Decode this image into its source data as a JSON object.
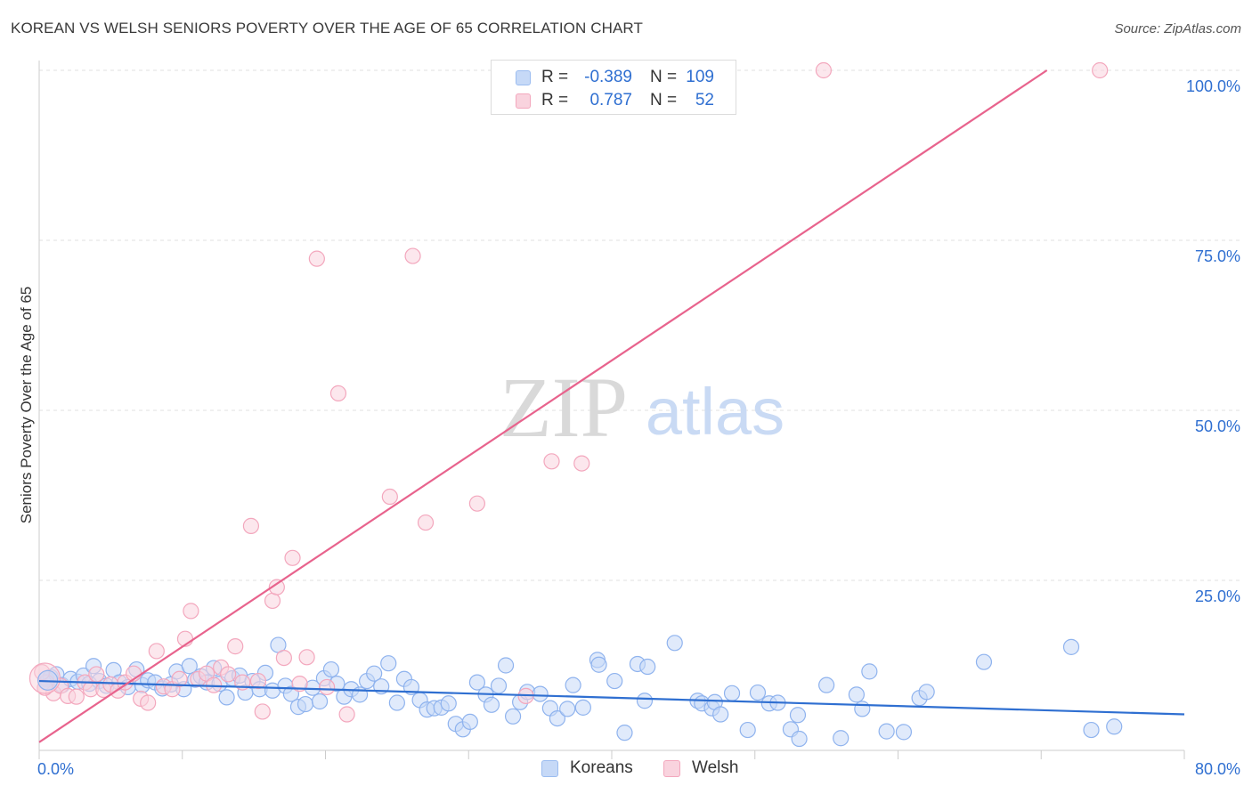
{
  "title": "KOREAN VS WELSH SENIORS POVERTY OVER THE AGE OF 65 CORRELATION CHART",
  "source": "Source: ZipAtlas.com",
  "watermark": {
    "zip": "ZIP",
    "atlas": "atlas"
  },
  "stats": [
    {
      "r_label": "R =",
      "r_value": "-0.389",
      "n_label": "N =",
      "n_value": "109",
      "color": "#9bbcf0",
      "fill": "#c6d9f7"
    },
    {
      "r_label": "R =",
      "r_value": "0.787",
      "n_label": "N =",
      "n_value": "52",
      "color": "#f3a7bd",
      "fill": "#f9d3de"
    }
  ],
  "legend": [
    {
      "label": "Koreans",
      "color": "#9bbcf0",
      "fill": "#c6d9f7"
    },
    {
      "label": "Welsh",
      "color": "#f3a7bd",
      "fill": "#f9d3de"
    }
  ],
  "chart_data": {
    "type": "scatter",
    "title": "KOREAN VS WELSH SENIORS POVERTY OVER THE AGE OF 65 CORRELATION CHART",
    "xlabel": "",
    "ylabel": "Seniors Poverty Over the Age of 65",
    "xlim": [
      0,
      80
    ],
    "ylim": [
      0,
      100
    ],
    "x_tick_labels": [
      "0.0%",
      "80.0%"
    ],
    "y_ticks": [
      25,
      50,
      75,
      100
    ],
    "y_tick_labels": [
      "25.0%",
      "50.0%",
      "75.0%",
      "100.0%"
    ],
    "grid": true,
    "legend_position": "bottom-center",
    "series": [
      {
        "name": "Koreans",
        "color": "#2f6fd1",
        "marker_fill": "#c6d9f7",
        "marker_stroke": "#8fb3ee",
        "trend": {
          "x": [
            0,
            80
          ],
          "y": [
            10.2,
            5.3
          ]
        },
        "points": [
          [
            0.5,
            10.5
          ],
          [
            0.8,
            10.8
          ],
          [
            1.2,
            11.2
          ],
          [
            1.6,
            9.6
          ],
          [
            2.2,
            10.5
          ],
          [
            2.7,
            10.1
          ],
          [
            3.1,
            11.0
          ],
          [
            3.5,
            9.8
          ],
          [
            3.8,
            12.4
          ],
          [
            4.2,
            10.2
          ],
          [
            4.7,
            9.5
          ],
          [
            5.2,
            11.8
          ],
          [
            5.6,
            10.0
          ],
          [
            6.2,
            9.3
          ],
          [
            6.8,
            11.9
          ],
          [
            7.2,
            9.6
          ],
          [
            7.6,
            10.3
          ],
          [
            8.1,
            10.0
          ],
          [
            8.6,
            9.1
          ],
          [
            9.2,
            9.7
          ],
          [
            9.6,
            11.6
          ],
          [
            10.1,
            9.0
          ],
          [
            10.5,
            12.4
          ],
          [
            10.9,
            10.4
          ],
          [
            11.3,
            10.9
          ],
          [
            11.7,
            10.0
          ],
          [
            12.2,
            12.1
          ],
          [
            12.6,
            9.8
          ],
          [
            13.1,
            7.8
          ],
          [
            13.5,
            10.6
          ],
          [
            14.0,
            11.0
          ],
          [
            14.4,
            8.5
          ],
          [
            14.9,
            10.2
          ],
          [
            15.4,
            9.0
          ],
          [
            15.8,
            11.4
          ],
          [
            16.3,
            8.8
          ],
          [
            16.7,
            15.5
          ],
          [
            17.2,
            9.5
          ],
          [
            17.6,
            8.3
          ],
          [
            18.1,
            6.4
          ],
          [
            18.6,
            6.8
          ],
          [
            19.1,
            9.2
          ],
          [
            19.6,
            7.2
          ],
          [
            19.9,
            10.6
          ],
          [
            20.4,
            11.9
          ],
          [
            20.8,
            9.8
          ],
          [
            21.3,
            7.9
          ],
          [
            21.8,
            9.0
          ],
          [
            22.4,
            8.2
          ],
          [
            22.9,
            10.2
          ],
          [
            23.4,
            11.3
          ],
          [
            23.9,
            9.4
          ],
          [
            24.4,
            12.8
          ],
          [
            25.0,
            7.0
          ],
          [
            25.5,
            10.5
          ],
          [
            26.0,
            9.3
          ],
          [
            26.6,
            7.4
          ],
          [
            27.1,
            6.0
          ],
          [
            27.6,
            6.2
          ],
          [
            28.1,
            6.3
          ],
          [
            28.6,
            6.9
          ],
          [
            29.1,
            3.9
          ],
          [
            29.6,
            3.1
          ],
          [
            30.1,
            4.2
          ],
          [
            30.6,
            10.0
          ],
          [
            31.2,
            8.2
          ],
          [
            31.6,
            6.7
          ],
          [
            32.1,
            9.5
          ],
          [
            32.6,
            12.5
          ],
          [
            33.1,
            5.0
          ],
          [
            33.6,
            7.1
          ],
          [
            34.1,
            8.6
          ],
          [
            35.0,
            8.3
          ],
          [
            35.7,
            6.2
          ],
          [
            36.2,
            4.7
          ],
          [
            36.9,
            6.1
          ],
          [
            37.3,
            9.6
          ],
          [
            38.0,
            6.3
          ],
          [
            39.0,
            13.3
          ],
          [
            39.1,
            12.6
          ],
          [
            40.2,
            10.2
          ],
          [
            40.9,
            2.6
          ],
          [
            41.8,
            12.7
          ],
          [
            42.5,
            12.3
          ],
          [
            42.3,
            7.3
          ],
          [
            44.4,
            15.8
          ],
          [
            46.0,
            7.3
          ],
          [
            46.3,
            6.9
          ],
          [
            47.0,
            6.2
          ],
          [
            47.2,
            7.1
          ],
          [
            47.6,
            5.3
          ],
          [
            48.4,
            8.4
          ],
          [
            49.5,
            3.0
          ],
          [
            50.2,
            8.5
          ],
          [
            51.0,
            6.9
          ],
          [
            51.6,
            7.0
          ],
          [
            52.5,
            3.1
          ],
          [
            53.0,
            5.2
          ],
          [
            53.1,
            1.7
          ],
          [
            55.0,
            9.6
          ],
          [
            56.0,
            1.8
          ],
          [
            57.1,
            8.2
          ],
          [
            58.0,
            11.6
          ],
          [
            57.5,
            6.1
          ],
          [
            59.2,
            2.8
          ],
          [
            60.4,
            2.7
          ],
          [
            61.5,
            7.7
          ],
          [
            62.0,
            8.6
          ],
          [
            66.0,
            13.0
          ],
          [
            72.1,
            15.2
          ],
          [
            73.5,
            3.0
          ],
          [
            75.1,
            3.5
          ]
        ]
      },
      {
        "name": "Welsh",
        "color": "#e8638d",
        "marker_fill": "#f9d3de",
        "marker_stroke": "#f3a7bd",
        "trend": {
          "x": [
            0,
            70.4
          ],
          "y": [
            1.2,
            100
          ]
        },
        "points": [
          [
            0.5,
            10.0
          ],
          [
            1.0,
            8.4
          ],
          [
            1.5,
            9.5
          ],
          [
            2.0,
            8.0
          ],
          [
            2.6,
            7.9
          ],
          [
            3.2,
            10.0
          ],
          [
            3.6,
            9.0
          ],
          [
            4.0,
            11.2
          ],
          [
            4.5,
            8.9
          ],
          [
            5.0,
            9.7
          ],
          [
            5.5,
            8.8
          ],
          [
            6.0,
            10.0
          ],
          [
            6.6,
            11.3
          ],
          [
            7.1,
            7.6
          ],
          [
            7.6,
            7.0
          ],
          [
            8.2,
            14.6
          ],
          [
            8.7,
            9.4
          ],
          [
            9.3,
            9.0
          ],
          [
            9.8,
            10.5
          ],
          [
            10.2,
            16.4
          ],
          [
            10.6,
            20.5
          ],
          [
            11.1,
            10.5
          ],
          [
            11.7,
            11.3
          ],
          [
            12.2,
            9.6
          ],
          [
            12.7,
            12.2
          ],
          [
            13.2,
            11.2
          ],
          [
            13.7,
            15.3
          ],
          [
            14.2,
            10.0
          ],
          [
            14.8,
            33.0
          ],
          [
            15.3,
            10.2
          ],
          [
            15.6,
            5.7
          ],
          [
            16.3,
            22.0
          ],
          [
            16.6,
            24.0
          ],
          [
            17.1,
            13.6
          ],
          [
            17.7,
            28.3
          ],
          [
            18.2,
            9.8
          ],
          [
            18.7,
            13.7
          ],
          [
            19.4,
            72.3
          ],
          [
            20.1,
            9.3
          ],
          [
            20.9,
            52.5
          ],
          [
            21.5,
            5.3
          ],
          [
            24.5,
            37.3
          ],
          [
            26.1,
            72.7
          ],
          [
            27.0,
            33.5
          ],
          [
            30.6,
            36.3
          ],
          [
            34.0,
            8.0
          ],
          [
            35.8,
            42.5
          ],
          [
            37.9,
            42.2
          ],
          [
            54.8,
            100.0
          ],
          [
            74.1,
            100.0
          ],
          [
            0.2,
            11.5
          ],
          [
            0.4,
            9.2
          ]
        ]
      }
    ]
  }
}
